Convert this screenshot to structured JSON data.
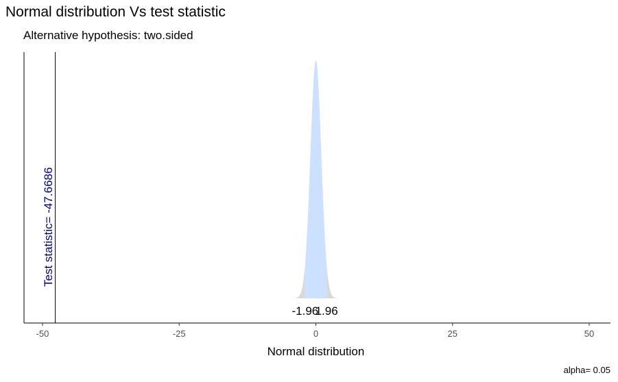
{
  "chart_data": {
    "type": "area",
    "title": "Normal distribution Vs test statistic",
    "subtitle": "Alternative hypothesis: two.sided",
    "xlabel": "Normal distribution",
    "ylabel": "",
    "xlim": [
      -50,
      50
    ],
    "x_ticks": [
      -50,
      -25,
      0,
      25,
      50
    ],
    "x_tick_labels": [
      "-50",
      "-25",
      "0",
      "25",
      "50"
    ],
    "distribution": {
      "name": "standard normal",
      "mean": 0,
      "sd": 1,
      "range": [
        -4,
        4
      ]
    },
    "critical_values": [
      -1.96,
      1.96
    ],
    "critical_labels": [
      "-1.96",
      "1.96"
    ],
    "test_statistic": -47.6686,
    "test_statistic_label": "Test statistic= -47.6686",
    "caption": "alpha= 0.05",
    "grid": false,
    "colors": {
      "acceptance_region": "#cce0ff",
      "rejection_region": "#d9d9d9",
      "test_statistic": "#00008b",
      "axis": "#000000"
    }
  }
}
